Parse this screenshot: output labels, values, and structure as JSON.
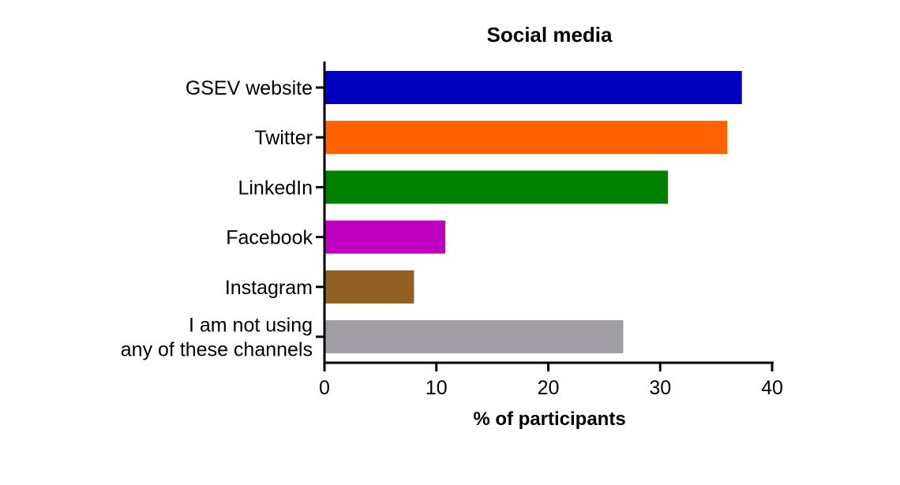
{
  "chart_data": {
    "type": "bar",
    "orientation": "horizontal",
    "title": "Social media",
    "xlabel": "% of participants",
    "ylabel": "",
    "xlim": [
      0,
      40
    ],
    "xticks": [
      "0",
      "10",
      "20",
      "30",
      "40"
    ],
    "grid": false,
    "categories": [
      [
        "GSEV website"
      ],
      [
        "Twitter"
      ],
      [
        "LinkedIn"
      ],
      [
        "Facebook"
      ],
      [
        "Instagram"
      ],
      [
        "I am not using",
        "any of these channels"
      ]
    ],
    "values": [
      37.3,
      36.0,
      30.7,
      10.8,
      8.0,
      26.7
    ],
    "colors": [
      "#0000c0",
      "#ff6000",
      "#008000",
      "#c000c0",
      "#916023",
      "#a19fa5"
    ]
  }
}
